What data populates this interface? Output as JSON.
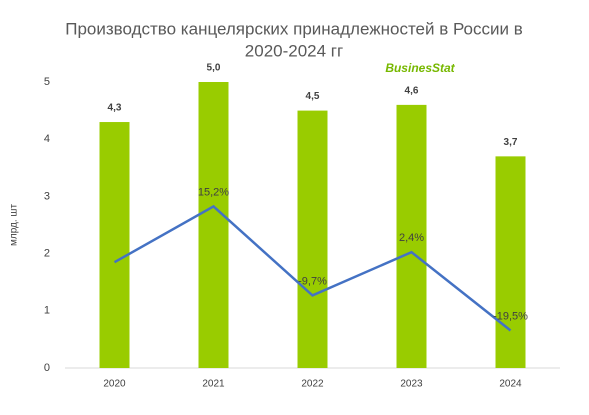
{
  "chart_data": {
    "type": "bar-line",
    "title": [
      "Производство канцелярских принадлежностей в России в",
      "2020-2024 гг"
    ],
    "logo": "BusinesStat",
    "y_label": "млрд. шт",
    "categories": [
      "2020",
      "2021",
      "2022",
      "2023",
      "2024"
    ],
    "series": [
      {
        "type": "bar",
        "color": "#99cc00",
        "values": [
          4.3,
          5.0,
          4.5,
          4.6,
          3.7
        ],
        "value_labels": [
          "4,3",
          "5,0",
          "4,5",
          "4,6",
          "3,7"
        ]
      },
      {
        "type": "line",
        "axis": "y2",
        "color": "#4472c4",
        "values": [
          -0.4,
          15.2,
          -9.7,
          2.4,
          -19.5
        ],
        "value_labels": [
          null,
          "15,2%",
          "-9,7%",
          "2,4%",
          "-19,5%"
        ]
      }
    ],
    "ylim": [
      0,
      5
    ],
    "yticks": [
      0,
      1,
      2,
      3,
      4,
      5
    ],
    "y2lim": [
      -30,
      50
    ],
    "grid": false
  }
}
